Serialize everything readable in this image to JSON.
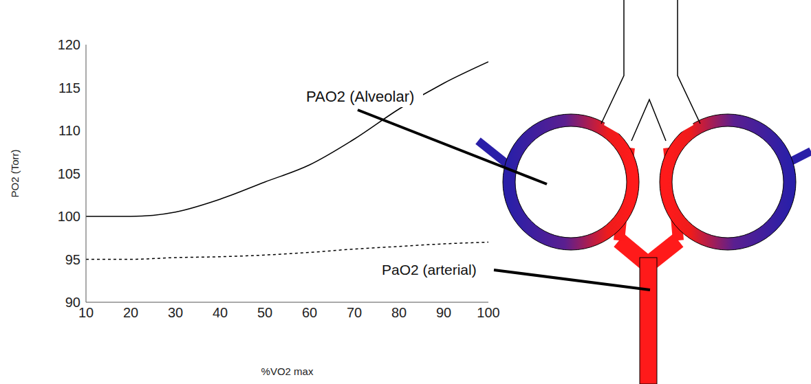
{
  "chart_data": {
    "type": "line",
    "x_label": "%VO2 max",
    "y_label": "PO2 (Torr)",
    "x": [
      10,
      20,
      30,
      40,
      50,
      60,
      70,
      80,
      90,
      100
    ],
    "xlim": [
      10,
      100
    ],
    "xticks": [
      10,
      20,
      30,
      40,
      50,
      60,
      70,
      80,
      90,
      100
    ],
    "ylim": [
      90,
      120
    ],
    "yticks": [
      90,
      95,
      100,
      105,
      110,
      115,
      120
    ],
    "grid": false,
    "series": [
      {
        "name": "PAO2 (Alveolar)",
        "color": "#000000",
        "line_style": "solid",
        "values": [
          100,
          100,
          100.5,
          102,
          104,
          106,
          109,
          112.5,
          115.5,
          118
        ]
      },
      {
        "name": "PaO2 (arterial)",
        "color": "#000000",
        "line_style": "dashed",
        "values": [
          95,
          95,
          95.2,
          95.3,
          95.5,
          95.8,
          96.2,
          96.5,
          96.8,
          97
        ]
      }
    ]
  }
}
